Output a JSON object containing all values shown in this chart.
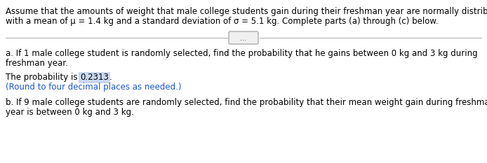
{
  "intro_line1": "Assume that the amounts of weight that male college students gain during their freshman year are normally distributed",
  "intro_line2": "with a mean of μ = 1.4 kg and a standard deviation of σ = 5.1 kg. Complete parts (a) through (c) below.",
  "divider_button_text": "...",
  "part_a_line1": "a. If 1 male college student is randomly selected, find the probability that he gains between 0 kg and 3 kg during",
  "part_a_line2": "freshman year.",
  "prob_prefix": "The probability is ",
  "prob_value": "0.2313",
  "prob_suffix": ".",
  "round_note": "(Round to four decimal places as needed.)",
  "part_b_line1": "b. If 9 male college students are randomly selected, find the probability that their mean weight gain during freshman",
  "part_b_line2": "year is between 0 kg and 3 kg.",
  "bg_color": "#ffffff",
  "text_color": "#000000",
  "highlight_color": "#c8d8f0",
  "blue_text_color": "#1a56cc",
  "font_size": 8.5,
  "divider_color": "#aaaaaa",
  "btn_edge_color": "#999999",
  "btn_face_color": "#f0f0f0"
}
